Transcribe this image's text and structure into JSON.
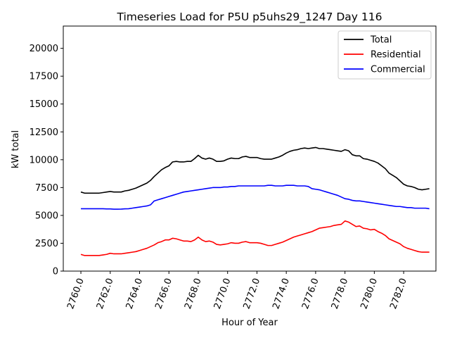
{
  "chart_data": {
    "type": "line",
    "title": "Timeseries Load for P5U p5uhs29_1247  Day 116",
    "xlabel": "Hour of Year",
    "ylabel": "kW total",
    "xlim": [
      2758.8,
      2784.2
    ],
    "ylim": [
      0,
      22000
    ],
    "xticks": [
      2760,
      2762,
      2764,
      2766,
      2768,
      2770,
      2772,
      2774,
      2776,
      2778,
      2780,
      2782
    ],
    "xtick_labels": [
      "2760.0",
      "2762.0",
      "2764.0",
      "2766.0",
      "2768.0",
      "2770.0",
      "2772.0",
      "2774.0",
      "2776.0",
      "2778.0",
      "2780.0",
      "2782.0"
    ],
    "yticks": [
      0,
      2500,
      5000,
      7500,
      10000,
      12500,
      15000,
      17500,
      20000
    ],
    "ytick_labels": [
      "0",
      "2500",
      "5000",
      "7500",
      "10000",
      "12500",
      "15000",
      "17500",
      "20000"
    ],
    "legend_position": "upper-right",
    "x_start": 2760,
    "x_step": 0.25,
    "series": [
      {
        "name": "Total",
        "color": "#000000",
        "values": [
          7100,
          7000,
          7000,
          7000,
          7000,
          7000,
          7050,
          7100,
          7150,
          7100,
          7100,
          7100,
          7200,
          7250,
          7350,
          7450,
          7600,
          7750,
          7900,
          8150,
          8500,
          8800,
          9100,
          9300,
          9450,
          9800,
          9850,
          9800,
          9800,
          9850,
          9850,
          10100,
          10400,
          10150,
          10050,
          10150,
          10050,
          9850,
          9850,
          9900,
          10050,
          10150,
          10100,
          10100,
          10250,
          10300,
          10200,
          10200,
          10200,
          10100,
          10050,
          10050,
          10050,
          10150,
          10250,
          10400,
          10600,
          10750,
          10850,
          10900,
          11000,
          11050,
          11000,
          11050,
          11100,
          11000,
          11000,
          10950,
          10900,
          10850,
          10800,
          10750,
          10900,
          10800,
          10450,
          10350,
          10350,
          10100,
          10050,
          9950,
          9850,
          9700,
          9450,
          9200,
          8800,
          8600,
          8400,
          8100,
          7800,
          7650,
          7600,
          7500,
          7350,
          7300,
          7350,
          7400
        ]
      },
      {
        "name": "Residential",
        "color": "#ff0000",
        "values": [
          1500,
          1400,
          1400,
          1400,
          1400,
          1400,
          1450,
          1500,
          1600,
          1550,
          1550,
          1550,
          1600,
          1650,
          1700,
          1750,
          1850,
          1950,
          2050,
          2200,
          2350,
          2550,
          2650,
          2800,
          2800,
          2950,
          2900,
          2800,
          2700,
          2700,
          2650,
          2800,
          3050,
          2800,
          2650,
          2700,
          2600,
          2400,
          2350,
          2400,
          2450,
          2550,
          2500,
          2500,
          2600,
          2650,
          2550,
          2550,
          2550,
          2500,
          2400,
          2300,
          2300,
          2400,
          2500,
          2600,
          2750,
          2900,
          3050,
          3150,
          3250,
          3350,
          3450,
          3550,
          3700,
          3850,
          3900,
          3950,
          4000,
          4100,
          4150,
          4200,
          4500,
          4400,
          4200,
          4000,
          4050,
          3850,
          3800,
          3700,
          3750,
          3550,
          3400,
          3200,
          2900,
          2750,
          2600,
          2450,
          2200,
          2050,
          1950,
          1850,
          1750,
          1700,
          1700,
          1700
        ]
      },
      {
        "name": "Commercial",
        "color": "#0000ff",
        "values": [
          5600,
          5600,
          5600,
          5600,
          5600,
          5600,
          5600,
          5580,
          5580,
          5560,
          5560,
          5570,
          5590,
          5600,
          5650,
          5700,
          5750,
          5800,
          5850,
          5950,
          6300,
          6400,
          6500,
          6600,
          6700,
          6800,
          6900,
          7000,
          7100,
          7150,
          7200,
          7250,
          7300,
          7350,
          7400,
          7450,
          7500,
          7500,
          7500,
          7550,
          7550,
          7600,
          7600,
          7650,
          7650,
          7650,
          7650,
          7650,
          7650,
          7650,
          7650,
          7700,
          7700,
          7650,
          7650,
          7650,
          7700,
          7700,
          7700,
          7650,
          7650,
          7650,
          7600,
          7400,
          7350,
          7300,
          7200,
          7100,
          7000,
          6900,
          6800,
          6650,
          6500,
          6450,
          6350,
          6300,
          6300,
          6250,
          6200,
          6150,
          6100,
          6050,
          6000,
          5950,
          5900,
          5850,
          5800,
          5800,
          5750,
          5700,
          5700,
          5650,
          5650,
          5650,
          5650,
          5600
        ]
      }
    ]
  }
}
